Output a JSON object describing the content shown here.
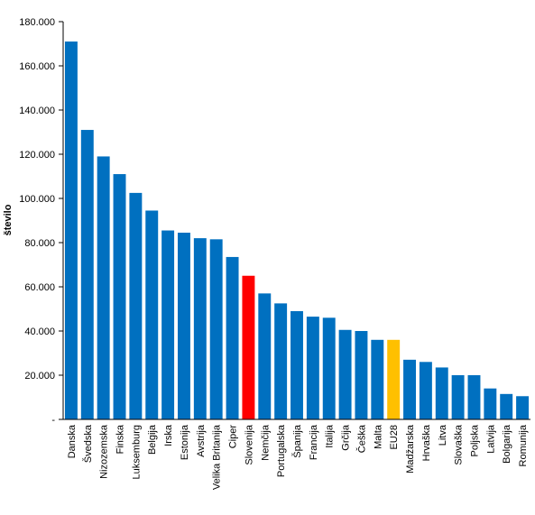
{
  "chart_data": {
    "type": "bar",
    "title": "",
    "xlabel": "",
    "ylabel": "število",
    "ylim": [
      0,
      180000
    ],
    "y_ticks": [
      0,
      20000,
      40000,
      60000,
      80000,
      100000,
      120000,
      140000,
      160000,
      180000
    ],
    "y_tick_labels": [
      "-",
      "20.000",
      "40.000",
      "60.000",
      "80.000",
      "100.000",
      "120.000",
      "140.000",
      "160.000",
      "180.000"
    ],
    "grid": false,
    "legend": "none",
    "categories": [
      "Danska",
      "Švedska",
      "Nizozemska",
      "Finska",
      "Luksemburg",
      "Belgija",
      "Irska",
      "Estonija",
      "Avstrija",
      "Velika Britanija",
      "Ciper",
      "Slovenija",
      "Nemčija",
      "Portugalska",
      "Španija",
      "Francija",
      "Italija",
      "Grčija",
      "Češka",
      "Malta",
      "EU28",
      "Madžarska",
      "Hrvaška",
      "Litva",
      "Slovaška",
      "Poljska",
      "Latvija",
      "Bolgarija",
      "Romunija"
    ],
    "values": [
      171000,
      131000,
      119000,
      111000,
      102500,
      94500,
      85500,
      84500,
      82000,
      81500,
      73500,
      65000,
      57000,
      52500,
      49000,
      46500,
      46000,
      40500,
      40000,
      36000,
      36000,
      27000,
      26000,
      23500,
      20000,
      20000,
      14000,
      11500,
      10500
    ],
    "colors": {
      "default": "#0070C0",
      "Slovenija": "#FF0000",
      "EU28": "#FFC000"
    }
  }
}
